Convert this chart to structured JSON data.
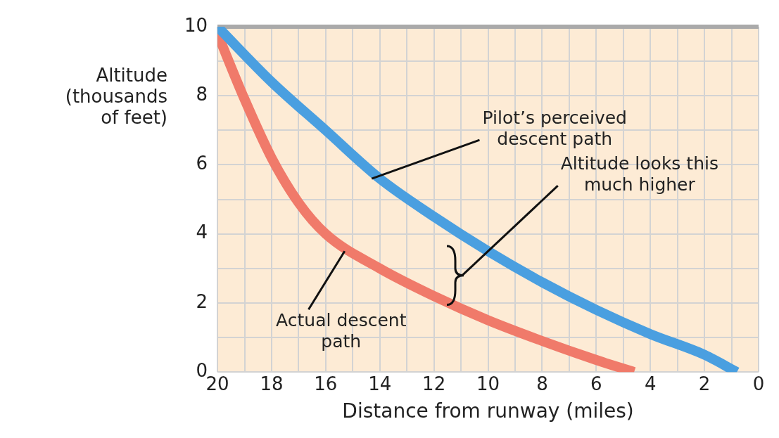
{
  "chart_data": {
    "type": "line",
    "xlabel": "Distance from runway (miles)",
    "ylabel": "Altitude (thousands of feet)",
    "xlim": [
      20,
      0
    ],
    "ylim": [
      0,
      10
    ],
    "xticks": [
      20,
      {
        "value": 19,
        "label": null
      },
      18,
      {
        "value": 17,
        "label": null
      },
      16,
      {
        "value": 15,
        "label": null
      },
      14,
      {
        "value": 13,
        "label": null
      },
      12,
      {
        "value": 11,
        "label": null
      },
      10,
      {
        "value": 9,
        "label": null
      },
      8,
      {
        "value": 7,
        "label": null
      },
      6,
      {
        "value": 5,
        "label": null
      },
      4,
      {
        "value": 3,
        "label": null
      },
      2,
      {
        "value": 1,
        "label": null
      },
      0
    ],
    "yticks": [
      0,
      {
        "value": 1,
        "label": null
      },
      2,
      {
        "value": 3,
        "label": null
      },
      4,
      {
        "value": 5,
        "label": null
      },
      6,
      {
        "value": 7,
        "label": null
      },
      8,
      {
        "value": 9,
        "label": null
      },
      10
    ],
    "grid": true,
    "legend": false,
    "marker": "none",
    "line_style": "solid",
    "series": [
      {
        "color": "#4a9fe0",
        "x": [
          20,
          18,
          16,
          14,
          12,
          10,
          8,
          6,
          4,
          2,
          0.8
        ],
        "values": [
          10,
          8.4,
          7.0,
          5.6,
          4.5,
          3.5,
          2.6,
          1.8,
          1.1,
          0.5,
          0
        ]
      },
      {
        "color": "#f07a6a",
        "x": [
          20,
          19,
          18,
          17,
          16,
          14,
          12,
          10,
          8,
          6,
          4.6
        ],
        "values": [
          9.8,
          7.9,
          6.2,
          4.9,
          4.0,
          3.0,
          2.2,
          1.5,
          0.9,
          0.35,
          0
        ]
      }
    ],
    "annotations": [
      {
        "text": "Pilot’s perceived descent path",
        "x": 14.3,
        "y": 5.6
      },
      "Altitude looks this much higher",
      {
        "text": "Actual descent path",
        "x": 15.3,
        "y": 3.5
      }
    ]
  }
}
